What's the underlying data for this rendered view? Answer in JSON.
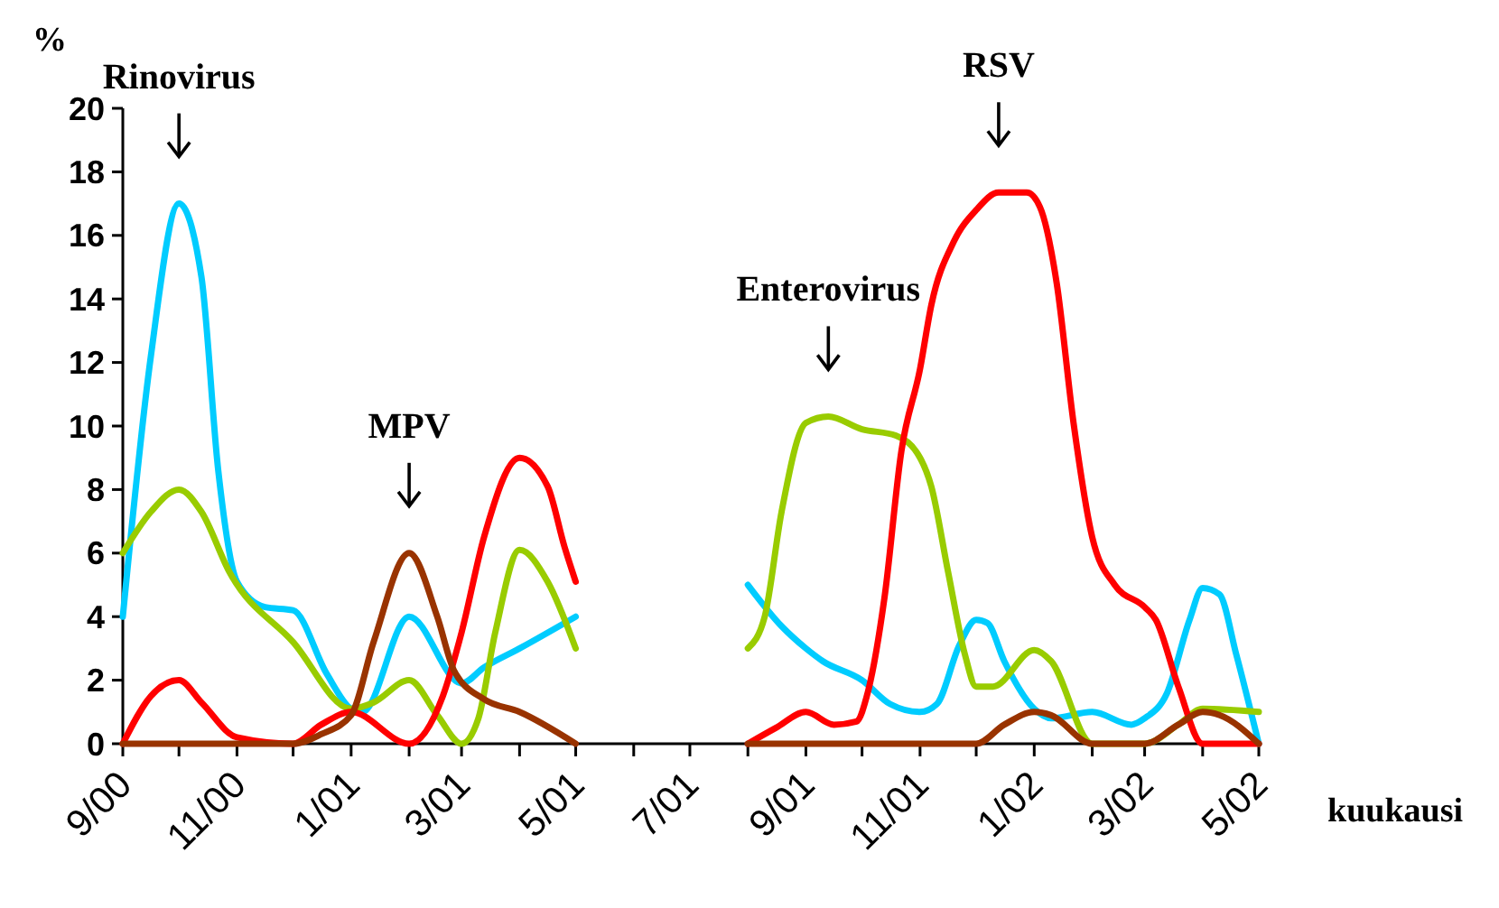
{
  "chart_data": {
    "type": "line",
    "ylabel": "%",
    "xlabel": "kuukausi",
    "xlim": [
      "2000-09-01",
      "2002-05-01"
    ],
    "xticks": [
      {
        "value": "2000-09",
        "label": "9/00"
      },
      {
        "value": "2000-10",
        "label": null
      },
      {
        "value": "2000-11",
        "label": "11/00"
      },
      {
        "value": "2000-12",
        "label": null
      },
      {
        "value": "2001-01",
        "label": "1/01"
      },
      {
        "value": "2001-02",
        "label": null
      },
      {
        "value": "2001-03",
        "label": "3/01"
      },
      {
        "value": "2001-04",
        "label": null
      },
      {
        "value": "2001-05",
        "label": "5/01"
      },
      {
        "value": "2001-06",
        "label": null
      },
      {
        "value": "2001-07",
        "label": "7/01"
      },
      {
        "value": "2001-08",
        "label": null
      },
      {
        "value": "2001-09",
        "label": "9/01"
      },
      {
        "value": "2001-10",
        "label": null
      },
      {
        "value": "2001-11",
        "label": "11/01"
      },
      {
        "value": "2001-12",
        "label": null
      },
      {
        "value": "2002-01",
        "label": "1/02"
      },
      {
        "value": "2002-02",
        "label": null
      },
      {
        "value": "2002-03",
        "label": "3/02"
      },
      {
        "value": "2002-04",
        "label": null
      },
      {
        "value": "2002-05",
        "label": "5/02"
      }
    ],
    "ylim": [
      0,
      20
    ],
    "yticks": [
      0,
      2,
      4,
      6,
      8,
      10,
      12,
      14,
      16,
      18,
      20
    ],
    "grid": false,
    "marker": "none",
    "line_style": "solid",
    "series": [
      {
        "color": "#00ccff",
        "x": [
          "2000-09-01",
          "2000-09-16",
          "2000-10-01",
          "2000-10-13",
          "2000-10-22",
          "2000-11-01",
          "2000-11-16",
          "2000-12-01",
          "2000-12-19",
          "2001-01-01",
          "2001-01-07",
          "2001-02-01",
          "2001-03-01",
          "2001-03-13",
          "2001-04-01",
          "2001-05-01",
          "2001-06-15",
          "2001-08-01",
          "2001-08-19",
          "2001-09-01",
          "2001-09-10",
          "2001-10-01",
          "2001-10-16",
          "2001-11-01",
          "2001-11-10",
          "2001-11-22",
          "2001-12-01",
          "2001-12-07",
          "2001-12-16",
          "2002-01-01",
          "2002-01-10",
          "2002-02-01",
          "2002-02-22",
          "2002-03-01",
          "2002-03-13",
          "2002-03-25",
          "2002-04-01",
          "2002-04-10",
          "2002-04-19",
          "2002-05-01"
        ],
        "values": [
          4,
          12.2,
          17,
          14.7,
          8.6,
          5.1,
          4.3,
          4.2,
          2.2,
          1.1,
          1,
          4,
          1.9,
          2.4,
          3,
          4,
          null,
          5,
          3.7,
          3,
          2.6,
          2,
          1.25,
          1,
          1.25,
          3.1,
          3.9,
          3.8,
          2.6,
          1.1,
          0.8,
          1,
          0.6,
          0.8,
          1.6,
          3.9,
          4.9,
          4.7,
          2.8,
          0
        ]
      },
      {
        "color": "#99cc00",
        "x": [
          "2000-09-01",
          "2000-09-16",
          "2000-10-01",
          "2000-10-13",
          "2000-10-28",
          "2000-12-01",
          "2001-01-01",
          "2001-01-13",
          "2001-02-01",
          "2001-02-16",
          "2001-03-01",
          "2001-03-10",
          "2001-03-19",
          "2001-04-01",
          "2001-04-16",
          "2001-05-01",
          "2001-06-15",
          "2001-08-01",
          "2001-08-10",
          "2001-08-19",
          "2001-09-01",
          "2001-09-13",
          "2001-10-01",
          "2001-10-19",
          "2001-11-01",
          "2001-11-07",
          "2001-11-16",
          "2001-11-25",
          "2001-12-01",
          "2001-12-10",
          "2002-01-01",
          "2002-01-10",
          "2002-02-01",
          "2002-03-01",
          "2002-03-19",
          "2002-04-01",
          "2002-05-01"
        ],
        "values": [
          6,
          7.3,
          8,
          7.3,
          5.4,
          3.2,
          1.1,
          1.3,
          2,
          0.9,
          0,
          0.8,
          3.5,
          6.1,
          5.1,
          3,
          null,
          3,
          4,
          7.3,
          10.1,
          10.3,
          9.9,
          9.7,
          9,
          8.1,
          5.4,
          2.8,
          1.8,
          1.8,
          2.95,
          2.6,
          0,
          0,
          0.6,
          1.1,
          1
        ]
      },
      {
        "color": "#ff0000",
        "x": [
          "2000-09-01",
          "2000-09-16",
          "2000-10-01",
          "2000-10-13",
          "2000-11-01",
          "2000-12-01",
          "2000-12-16",
          "2001-01-01",
          "2001-02-01",
          "2001-02-19",
          "2001-03-01",
          "2001-03-13",
          "2001-04-01",
          "2001-04-16",
          "2001-04-25",
          "2001-05-01",
          "2001-06-15",
          "2001-08-01",
          "2001-08-16",
          "2001-09-01",
          "2001-09-16",
          "2001-09-28",
          "2001-10-04",
          "2001-10-13",
          "2001-10-22",
          "2001-11-01",
          "2001-11-07",
          "2001-11-19",
          "2001-12-01",
          "2001-12-13",
          "2001-12-28",
          "2002-01-04",
          "2002-01-13",
          "2002-01-22",
          "2002-02-01",
          "2002-02-13",
          "2002-03-01",
          "2002-03-07",
          "2002-03-19",
          "2002-04-01",
          "2002-04-16",
          "2002-05-01"
        ],
        "values": [
          0,
          1.5,
          2,
          1.3,
          0.2,
          0,
          0.6,
          1,
          0,
          1.5,
          3.5,
          6.5,
          9,
          8.1,
          6.2,
          5.1,
          null,
          0,
          0.5,
          1,
          0.6,
          0.7,
          1.6,
          4.6,
          9.2,
          11.8,
          13.8,
          15.8,
          16.8,
          17.35,
          17.35,
          16.9,
          14.5,
          10.1,
          6.5,
          5,
          4.3,
          3.9,
          1.8,
          0,
          0,
          0
        ]
      },
      {
        "color": "#993300",
        "x": [
          "2000-09-01",
          "2000-10-01",
          "2000-11-01",
          "2000-12-01",
          "2000-12-16",
          "2001-01-01",
          "2001-01-13",
          "2001-02-01",
          "2001-02-16",
          "2001-02-25",
          "2001-03-13",
          "2001-04-01",
          "2001-05-01",
          "2001-06-15",
          "2001-08-01",
          "2001-09-01",
          "2001-10-01",
          "2001-11-01",
          "2001-12-01",
          "2001-12-16",
          "2002-01-01",
          "2002-01-10",
          "2002-02-01",
          "2002-03-01",
          "2002-03-19",
          "2002-04-01",
          "2002-04-10",
          "2002-05-01"
        ],
        "values": [
          0,
          0,
          0,
          0,
          0.3,
          0.9,
          3.2,
          6,
          4,
          2.3,
          1.4,
          1,
          0,
          null,
          0,
          0,
          0,
          0,
          0,
          0.6,
          1,
          0.9,
          0,
          0,
          0.6,
          1,
          0.9,
          0
        ]
      }
    ],
    "annotations": [
      {
        "text": "Rinovirus",
        "x": "2000-10-01",
        "y": 17
      },
      {
        "text": "MPV",
        "x": "2001-02-01",
        "y": 6
      },
      {
        "text": "Enterovirus",
        "x": "2001-09-13",
        "y": 10.3
      },
      {
        "text": "RSV",
        "x": "2001-12-13",
        "y": 17.35
      }
    ]
  }
}
